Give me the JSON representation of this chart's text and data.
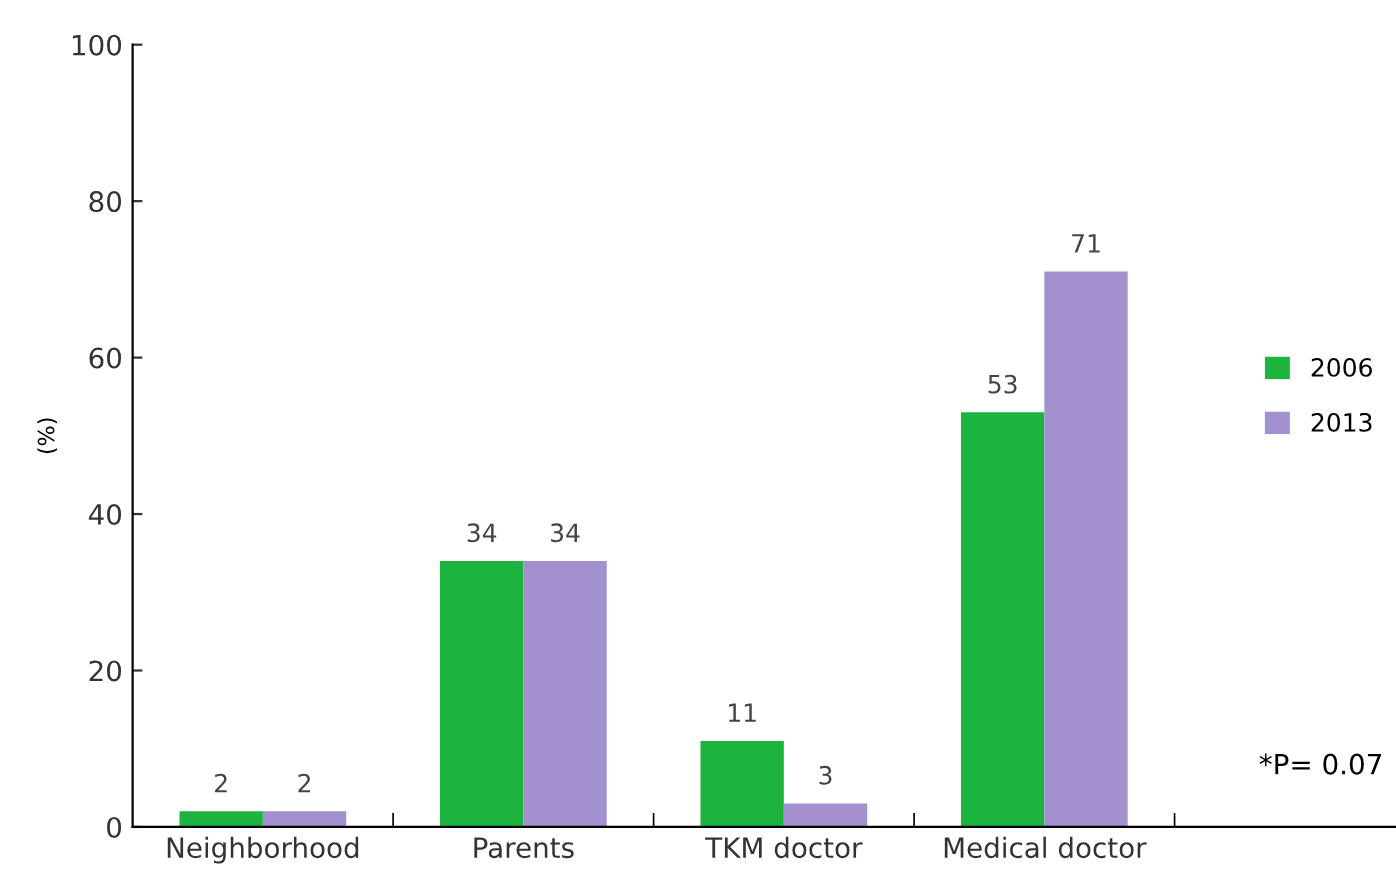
{
  "chart_data": {
    "type": "bar",
    "ylabel": "(%)",
    "categories": [
      "Neighborhood",
      "Parents",
      "TKM doctor",
      "Medical doctor"
    ],
    "series": [
      {
        "name": "2006",
        "color": "#1db33f",
        "values": [
          2,
          34,
          11,
          53
        ]
      },
      {
        "name": "2013",
        "color": "#a391cf",
        "values": [
          2,
          34,
          3,
          71
        ]
      }
    ],
    "ylim": [
      0,
      100
    ],
    "yticks": [
      0,
      20,
      40,
      60,
      80,
      100
    ],
    "grid": false,
    "legend": "right",
    "data_labels": true,
    "annotations": [
      "*P= 0.07"
    ]
  }
}
